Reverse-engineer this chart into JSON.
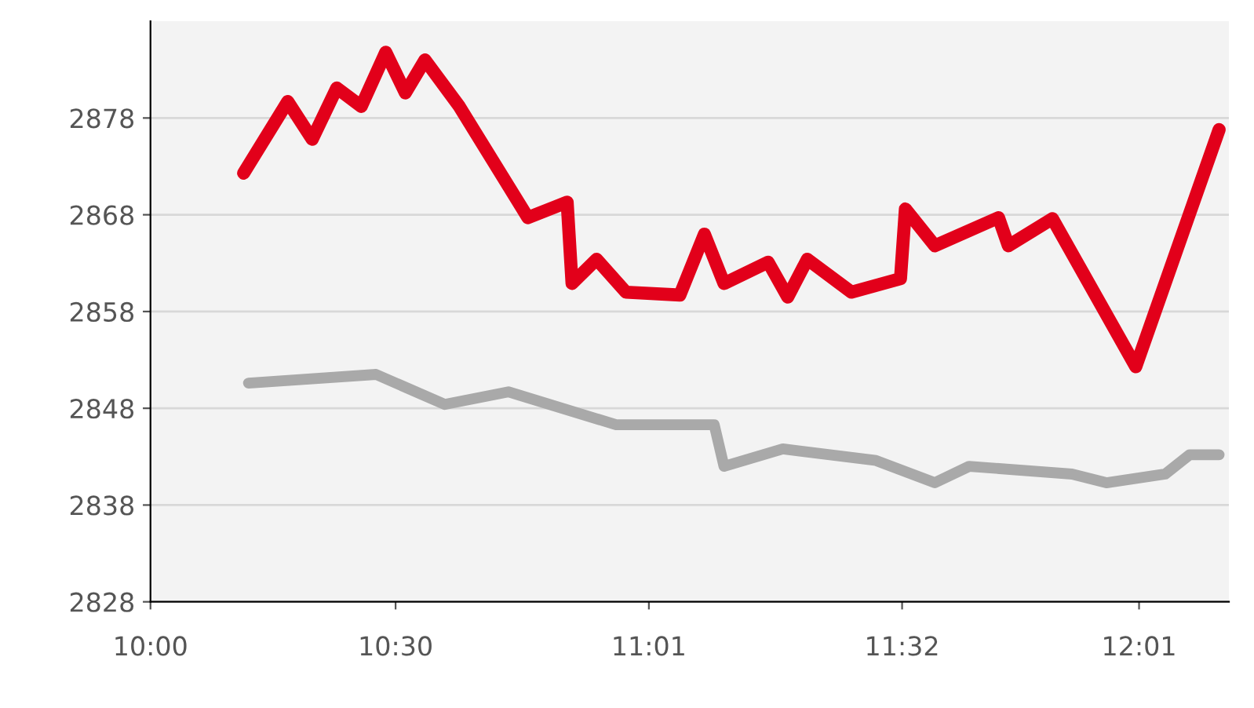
{
  "chart_data": {
    "type": "line",
    "xlim": [
      10,
      12.2
    ],
    "ylim": [
      2828,
      2888
    ],
    "xticks": [
      {
        "value": 10,
        "label": "10:00"
      },
      {
        "value": 10.5,
        "label": "10:30"
      },
      {
        "value": 11.0167,
        "label": "11:01"
      },
      {
        "value": 11.5333,
        "label": "11:32"
      },
      {
        "value": 12.0167,
        "label": "12:01"
      }
    ],
    "yticks": [
      2828,
      2838,
      2848,
      2858,
      2868,
      2878
    ],
    "grid": "y",
    "marker": "none",
    "line_style": "solid",
    "series": [
      {
        "color": "#a9a9a9",
        "x": [
          10.2,
          10.46,
          10.6,
          10.73,
          10.95,
          11.15,
          11.17,
          11.29,
          11.48,
          11.6,
          11.67,
          11.88,
          11.95,
          12.07,
          12.12,
          12.18
        ],
        "values": [
          2850.6,
          2851.5,
          2848.4,
          2849.7,
          2846.3,
          2846.3,
          2842.0,
          2843.8,
          2842.6,
          2840.3,
          2842.0,
          2841.2,
          2840.3,
          2841.2,
          2843.2,
          2843.2
        ]
      },
      {
        "color": "#e2001a",
        "x": [
          10.19,
          10.28,
          10.33,
          10.38,
          10.43,
          10.48,
          10.52,
          10.56,
          10.63,
          10.77,
          10.85,
          10.86,
          10.91,
          10.97,
          11.08,
          11.13,
          11.17,
          11.26,
          11.3,
          11.34,
          11.43,
          11.53,
          11.54,
          11.6,
          11.73,
          11.75,
          11.84,
          12.01,
          12.18
        ],
        "values": [
          2872.3,
          2879.7,
          2875.8,
          2881.1,
          2879.2,
          2884.8,
          2880.6,
          2884.0,
          2879.2,
          2867.7,
          2869.3,
          2860.9,
          2863.4,
          2860.0,
          2859.7,
          2866.0,
          2860.9,
          2863.1,
          2859.5,
          2863.4,
          2860.0,
          2861.4,
          2868.6,
          2864.8,
          2867.7,
          2864.8,
          2867.6,
          2852.3,
          2876.8
        ]
      }
    ]
  }
}
